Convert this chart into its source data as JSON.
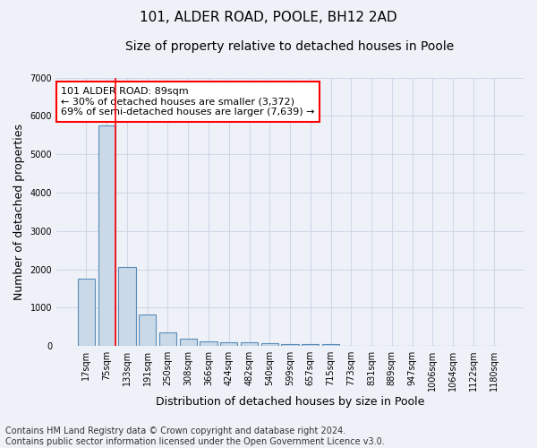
{
  "title1": "101, ALDER ROAD, POOLE, BH12 2AD",
  "title2": "Size of property relative to detached houses in Poole",
  "xlabel": "Distribution of detached houses by size in Poole",
  "ylabel": "Number of detached properties",
  "categories": [
    "17sqm",
    "75sqm",
    "133sqm",
    "191sqm",
    "250sqm",
    "308sqm",
    "366sqm",
    "424sqm",
    "482sqm",
    "540sqm",
    "599sqm",
    "657sqm",
    "715sqm",
    "773sqm",
    "831sqm",
    "889sqm",
    "947sqm",
    "1006sqm",
    "1064sqm",
    "1122sqm",
    "1180sqm"
  ],
  "values": [
    1750,
    5750,
    2050,
    820,
    360,
    200,
    115,
    100,
    95,
    75,
    60,
    55,
    55,
    0,
    0,
    0,
    0,
    0,
    0,
    0,
    0
  ],
  "bar_color": "#c9d9e8",
  "bar_edge_color": "#5b8db8",
  "highlight_bar_index": 1,
  "annotation_text": "101 ALDER ROAD: 89sqm\n← 30% of detached houses are smaller (3,372)\n69% of semi-detached houses are larger (7,639) →",
  "annotation_box_color": "white",
  "annotation_box_edge_color": "red",
  "ylim": [
    0,
    7000
  ],
  "yticks": [
    0,
    1000,
    2000,
    3000,
    4000,
    5000,
    6000,
    7000
  ],
  "grid_color": "#d0d8e8",
  "bg_color": "#eef2f8",
  "footer_line1": "Contains HM Land Registry data © Crown copyright and database right 2024.",
  "footer_line2": "Contains public sector information licensed under the Open Government Licence v3.0.",
  "title1_fontsize": 11,
  "title2_fontsize": 10,
  "xlabel_fontsize": 9,
  "ylabel_fontsize": 9,
  "tick_fontsize": 7,
  "annotation_fontsize": 8,
  "footer_fontsize": 7
}
